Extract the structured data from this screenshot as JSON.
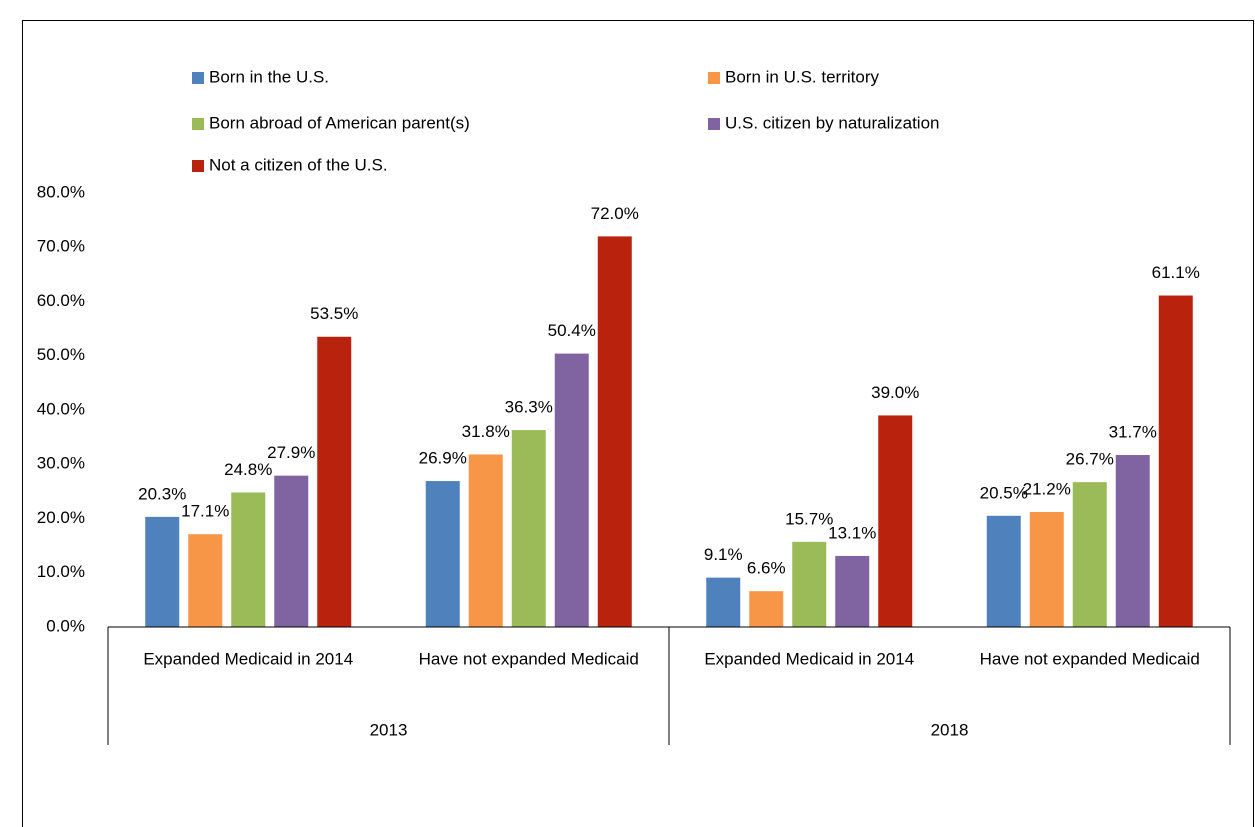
{
  "chart_data": {
    "type": "bar",
    "groups": [
      {
        "name": "2013",
        "categories": [
          "Expanded Medicaid in 2014",
          "Have not expanded Medicaid"
        ]
      },
      {
        "name": "2018",
        "categories": [
          "Expanded Medicaid in 2014",
          "Have not expanded Medicaid"
        ]
      }
    ],
    "series": [
      {
        "name": "Born in the U.S.",
        "color": "#4f81bd",
        "values": [
          20.3,
          26.9,
          9.1,
          20.5
        ],
        "value_labels": [
          "20.3%",
          "26.9%",
          "9.1%",
          "20.5%"
        ]
      },
      {
        "name": "Born in U.S. territory",
        "color": "#f79646",
        "values": [
          17.1,
          31.8,
          6.6,
          21.2
        ],
        "value_labels": [
          "17.1%",
          "31.8%",
          "6.6%",
          "21.2%"
        ]
      },
      {
        "name": "Born abroad of American parent(s)",
        "color": "#9bbb59",
        "values": [
          24.8,
          36.3,
          15.7,
          26.7
        ],
        "value_labels": [
          "24.8%",
          "36.3%",
          "15.7%",
          "26.7%"
        ]
      },
      {
        "name": "U.S. citizen by naturalization",
        "color": "#8064a2",
        "values": [
          27.9,
          50.4,
          13.1,
          31.7
        ],
        "value_labels": [
          "27.9%",
          "50.4%",
          "13.1%",
          "31.7%"
        ]
      },
      {
        "name": "Not a citizen of the U.S.",
        "color": "#b9220d",
        "values": [
          53.5,
          72.0,
          39.0,
          61.1
        ],
        "value_labels": [
          "53.5%",
          "72.0%",
          "39.0%",
          "61.1%"
        ]
      }
    ],
    "ylim": [
      0,
      80
    ],
    "yticks": [
      {
        "value": 0,
        "label": "0.0%"
      },
      {
        "value": 10,
        "label": "10.0%"
      },
      {
        "value": 20,
        "label": "20.0%"
      },
      {
        "value": 30,
        "label": "30.0%"
      },
      {
        "value": 40,
        "label": "40.0%"
      },
      {
        "value": 50,
        "label": "50.0%"
      },
      {
        "value": 60,
        "label": "60.0%"
      },
      {
        "value": 70,
        "label": "70.0%"
      },
      {
        "value": 80,
        "label": "80.0%"
      }
    ]
  }
}
